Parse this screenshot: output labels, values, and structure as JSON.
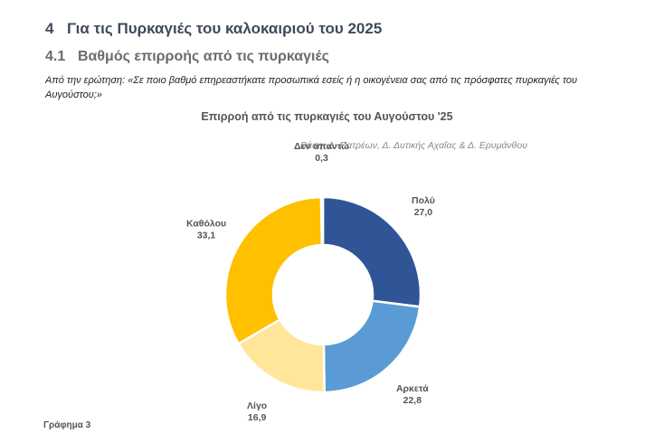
{
  "heading1": {
    "number": "4",
    "text": "Για τις Πυρκαγιές του καλοκαιριού του 2025"
  },
  "heading2": {
    "number": "4.1",
    "text": "Βαθμός επιρροής από τις πυρκαγιές"
  },
  "question": "Από την ερώτηση: «Σε ποιο βαθμό επηρεαστήκατε προσωπικά εσείς ή η οικογένεια σας από τις πρόσφατες πυρκαγιές του Αυγούστου;»",
  "footer": "Γράφημα 3",
  "chart_data": {
    "type": "pie",
    "donut": true,
    "title": "Επιρροή από τις πυρκαγιές του Αυγούστου '25",
    "subtitle": "Βάση: Δ. Πατρέων, Δ. Δυτικής Αχαΐας & Δ. Ερυμάνθου",
    "categories": [
      "Πολύ",
      "Αρκετά",
      "Λίγο",
      "Καθόλου",
      "Δεν απαντώ"
    ],
    "values": [
      27.0,
      22.8,
      16.9,
      33.1,
      0.3
    ],
    "value_labels": [
      "27,0",
      "22,8",
      "16,9",
      "33,1",
      "0,3"
    ],
    "colors": [
      "#2f5597",
      "#5b9bd5",
      "#ffe699",
      "#ffc000",
      "#a5a5a5"
    ],
    "legend": "none"
  }
}
